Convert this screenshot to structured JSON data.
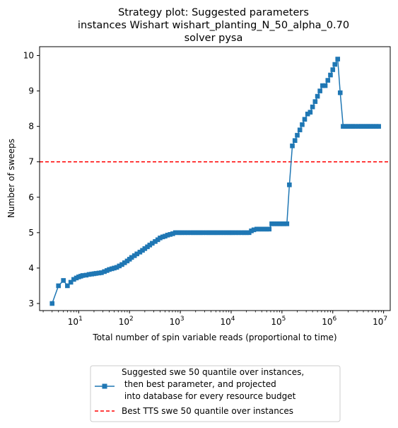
{
  "chart_data": {
    "type": "line",
    "title_lines": [
      "Strategy plot: Suggested parameters",
      "instances Wishart wishart_planting_N_50_alpha_0.70",
      "solver pysa"
    ],
    "xlabel": "Total number of spin variable reads (proportional to time)",
    "ylabel": "Number of sweeps",
    "x_scale": "log",
    "xlim": [
      1.7,
      13500000
    ],
    "ylim": [
      2.8,
      10.25
    ],
    "x_tick_labels": [
      {
        "value": 10,
        "base": "10",
        "exp": "1"
      },
      {
        "value": 100,
        "base": "10",
        "exp": "2"
      },
      {
        "value": 1000,
        "base": "10",
        "exp": "3"
      },
      {
        "value": 10000,
        "base": "10",
        "exp": "4"
      },
      {
        "value": 100000,
        "base": "10",
        "exp": "5"
      },
      {
        "value": 1000000,
        "base": "10",
        "exp": "6"
      },
      {
        "value": 10000000,
        "base": "10",
        "exp": "7"
      }
    ],
    "y_ticks": [
      3,
      4,
      5,
      6,
      7,
      8,
      9,
      10
    ],
    "grid": false,
    "legend_position": "below plot",
    "series": [
      {
        "name": "Suggested swe 50 quantile over instances,\n then best parameter, and projected\n into database for every resource budget",
        "color": "#1f77b4",
        "marker": "square",
        "x": [
          3.0,
          4.0,
          5.0,
          6.0,
          7.0,
          8.0,
          9.0,
          10.0,
          11.0,
          12.0,
          14.0,
          16.0,
          18.0,
          20.0,
          22.0,
          25.0,
          28.0,
          32.0,
          36.0,
          40.0,
          45.0,
          50.0,
          56.0,
          63.0,
          71.0,
          80.0,
          90.0,
          100.0,
          110.0,
          125.0,
          140.0,
          160.0,
          180.0,
          200.0,
          225.0,
          250.0,
          280.0,
          320.0,
          360.0,
          400.0,
          450.0,
          500.0,
          560.0,
          630.0,
          710.0,
          800.0,
          900.0,
          1000.0,
          1100.0,
          1250.0,
          1400.0,
          1600.0,
          1800.0,
          2000.0,
          2250.0,
          2500.0,
          2800.0,
          3200.0,
          3600.0,
          4000.0,
          4500.0,
          5000.0,
          5600.0,
          6300.0,
          7100.0,
          8000.0,
          9000.0,
          10000.0,
          11000.0,
          12500.0,
          14000.0,
          16000.0,
          18000.0,
          20000.0,
          22500.0,
          25000.0,
          28000.0,
          32000.0,
          36000.0,
          40000.0,
          45000.0,
          50000.0,
          56000.0,
          63000.0,
          71000.0,
          80000.0,
          90000.0,
          100000.0,
          110000.0,
          125000.0,
          140000.0,
          160000.0,
          180000.0,
          200000.0,
          225000.0,
          250000.0,
          280000.0,
          320000.0,
          360000.0,
          400000.0,
          450000.0,
          500000.0,
          560000.0,
          630000.0,
          710000.0,
          800000.0,
          900000.0,
          1000000.0,
          1100000.0,
          1250000.0,
          1400000.0,
          1600000.0,
          1800000.0,
          2000000.0,
          2250000.0,
          2500000.0,
          2800000.0,
          3200000.0,
          3600000.0,
          4000000.0,
          4500000.0,
          5000000.0,
          5600000.0,
          6300000.0,
          7100000.0,
          8000000.0
        ],
        "y": [
          3.0,
          3.5,
          3.65,
          3.5,
          3.6,
          3.68,
          3.72,
          3.75,
          3.77,
          3.79,
          3.8,
          3.82,
          3.83,
          3.84,
          3.85,
          3.86,
          3.87,
          3.9,
          3.93,
          3.96,
          3.98,
          4.0,
          4.02,
          4.06,
          4.1,
          4.15,
          4.2,
          4.25,
          4.3,
          4.35,
          4.4,
          4.45,
          4.5,
          4.55,
          4.6,
          4.65,
          4.7,
          4.75,
          4.8,
          4.85,
          4.88,
          4.9,
          4.93,
          4.95,
          4.97,
          5.0,
          5.0,
          5.0,
          5.0,
          5.0,
          5.0,
          5.0,
          5.0,
          5.0,
          5.0,
          5.0,
          5.0,
          5.0,
          5.0,
          5.0,
          5.0,
          5.0,
          5.0,
          5.0,
          5.0,
          5.0,
          5.0,
          5.0,
          5.0,
          5.0,
          5.0,
          5.0,
          5.0,
          5.0,
          5.0,
          5.05,
          5.08,
          5.1,
          5.1,
          5.1,
          5.1,
          5.1,
          5.1,
          5.25,
          5.25,
          5.25,
          5.25,
          5.25,
          5.25,
          5.25,
          6.35,
          7.45,
          7.6,
          7.75,
          7.9,
          8.05,
          8.2,
          8.35,
          8.4,
          8.55,
          8.7,
          8.85,
          9.0,
          9.15,
          9.15,
          9.3,
          9.45,
          9.6,
          9.75,
          9.9,
          8.95,
          8.0,
          8.0,
          8.0,
          8.0,
          8.0,
          8.0,
          8.0,
          8.0,
          8.0,
          8.0,
          8.0,
          8.0,
          8.0,
          8.0,
          8.0
        ]
      },
      {
        "name": "Best TTS swe 50 quantile over instances",
        "color": "#ff0000",
        "style": "dashed",
        "y_constant": 7.0
      }
    ]
  }
}
